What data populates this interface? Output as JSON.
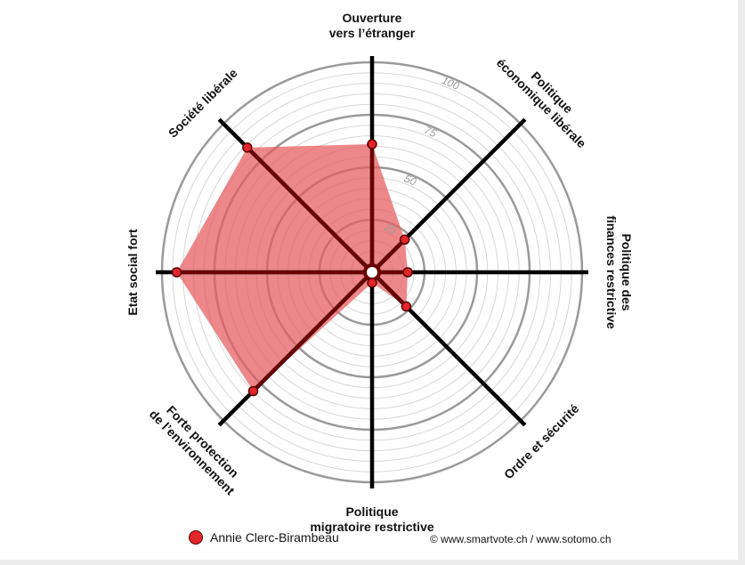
{
  "chart_data": {
    "type": "radar",
    "axes": [
      "Ouverture\nvers l’étranger",
      "Politique\néconomique libérale",
      "Politique des\nfinances restrictive",
      "Ordre et sécurité",
      "Politique\nmigratoire restrictive",
      "Forte protection\nde l’environnement",
      "Etat social fort",
      "Société libérale"
    ],
    "series": [
      {
        "name": "Annie Clerc-Birambeau",
        "values": [
          61,
          22,
          17,
          23,
          5,
          80,
          93,
          84
        ]
      }
    ],
    "ticks": [
      "25",
      "50",
      "75",
      "100"
    ],
    "rlim": [
      0,
      100
    ],
    "colors": {
      "fill": "#e8595c",
      "line": "#6b0000",
      "marker": "#e3262b",
      "spoke": "#000000",
      "ring": "#9a9a9a"
    },
    "legend_position": "bottom"
  },
  "legend": {
    "label": "Annie Clerc-Birambeau"
  },
  "footer": {
    "copyright": "© www.smartvote.ch / www.sotomo.ch"
  }
}
